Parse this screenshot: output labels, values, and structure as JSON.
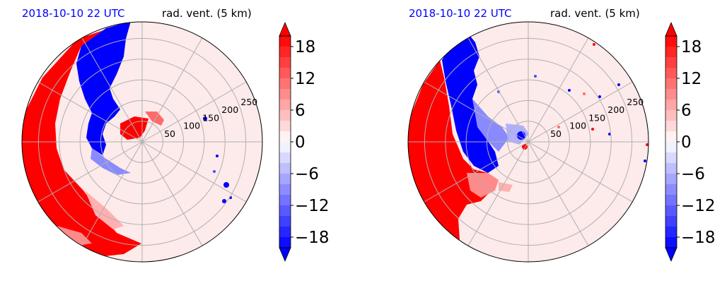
{
  "chart_data": [
    {
      "type": "heatmap",
      "projection": "polar",
      "title_left": "2018-10-10 22 UTC",
      "title_right": "rad. vent. (5 km)",
      "radial_ticks": [
        50,
        100,
        150,
        200,
        250
      ],
      "radial_limit": 290,
      "grid": true,
      "colorbar": {
        "ticks": [
          18,
          12,
          6,
          0,
          -6,
          -12,
          -18
        ],
        "tick_labels": [
          "18",
          "12",
          "6",
          "0",
          "−6",
          "−12",
          "−18"
        ],
        "range": [
          -20,
          20
        ],
        "extend": "both",
        "colors": {
          "negative": "#0000ff",
          "zero": "#ffffff",
          "positive": "#ff0000"
        }
      }
    },
    {
      "type": "heatmap",
      "projection": "polar",
      "title_left": "2018-10-10 22 UTC",
      "title_right": "rad. vent. (5 km)",
      "radial_ticks": [
        50,
        100,
        150,
        200,
        250
      ],
      "radial_limit": 290,
      "grid": true,
      "colorbar": {
        "ticks": [
          18,
          12,
          6,
          0,
          -6,
          -12,
          -18
        ],
        "tick_labels": [
          "18",
          "12",
          "6",
          "0",
          "−6",
          "−12",
          "−18"
        ],
        "range": [
          -20,
          20
        ],
        "extend": "both",
        "colors": {
          "negative": "#0000ff",
          "zero": "#ffffff",
          "positive": "#ff0000"
        }
      }
    }
  ]
}
